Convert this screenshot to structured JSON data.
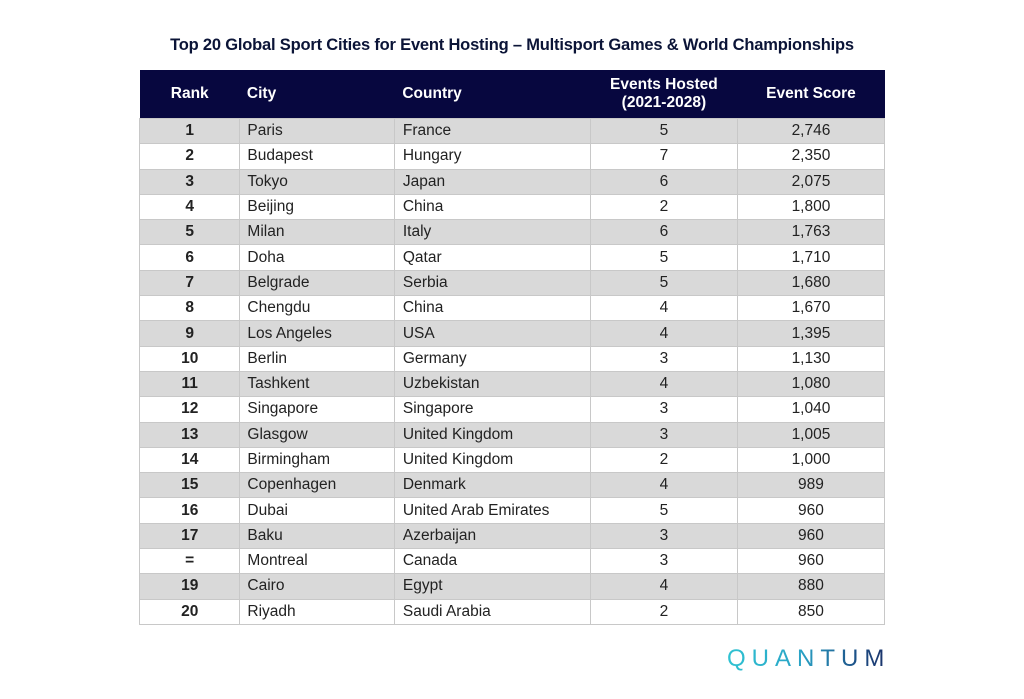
{
  "title": "Top 20 Global Sport Cities for Event Hosting – Multisport Games & World Championships",
  "header": {
    "rank": "Rank",
    "city": "City",
    "country": "Country",
    "events_line1": "Events Hosted",
    "events_line2": "(2021-2028)",
    "score": "Event Score"
  },
  "rows": [
    {
      "rank": "1",
      "city": "Paris",
      "country": "France",
      "events": "5",
      "score": "2,746"
    },
    {
      "rank": "2",
      "city": "Budapest",
      "country": "Hungary",
      "events": "7",
      "score": "2,350"
    },
    {
      "rank": "3",
      "city": "Tokyo",
      "country": "Japan",
      "events": "6",
      "score": "2,075"
    },
    {
      "rank": "4",
      "city": "Beijing",
      "country": "China",
      "events": "2",
      "score": "1,800"
    },
    {
      "rank": "5",
      "city": "Milan",
      "country": "Italy",
      "events": "6",
      "score": "1,763"
    },
    {
      "rank": "6",
      "city": "Doha",
      "country": "Qatar",
      "events": "5",
      "score": "1,710"
    },
    {
      "rank": "7",
      "city": "Belgrade",
      "country": "Serbia",
      "events": "5",
      "score": "1,680"
    },
    {
      "rank": "8",
      "city": "Chengdu",
      "country": "China",
      "events": "4",
      "score": "1,670"
    },
    {
      "rank": "9",
      "city": "Los Angeles",
      "country": "USA",
      "events": "4",
      "score": "1,395"
    },
    {
      "rank": "10",
      "city": "Berlin",
      "country": "Germany",
      "events": "3",
      "score": "1,130"
    },
    {
      "rank": "11",
      "city": "Tashkent",
      "country": "Uzbekistan",
      "events": "4",
      "score": "1,080"
    },
    {
      "rank": "12",
      "city": "Singapore",
      "country": "Singapore",
      "events": "3",
      "score": "1,040"
    },
    {
      "rank": "13",
      "city": "Glasgow",
      "country": "United Kingdom",
      "events": "3",
      "score": "1,005"
    },
    {
      "rank": "14",
      "city": "Birmingham",
      "country": "United Kingdom",
      "events": "2",
      "score": "1,000"
    },
    {
      "rank": "15",
      "city": "Copenhagen",
      "country": "Denmark",
      "events": "4",
      "score": "989"
    },
    {
      "rank": "16",
      "city": "Dubai",
      "country": "United Arab Emirates",
      "events": "5",
      "score": "960"
    },
    {
      "rank": "17",
      "city": "Baku",
      "country": "Azerbaijan",
      "events": "3",
      "score": "960"
    },
    {
      "rank": "=",
      "city": "Montreal",
      "country": "Canada",
      "events": "3",
      "score": "960"
    },
    {
      "rank": "19",
      "city": "Cairo",
      "country": "Egypt",
      "events": "4",
      "score": "880"
    },
    {
      "rank": "20",
      "city": "Riyadh",
      "country": "Saudi Arabia",
      "events": "2",
      "score": "850"
    }
  ],
  "logo": "QUANTUM",
  "colors": {
    "header_bg": "#07073f",
    "title_color": "#0b1437",
    "stripe": "#d9d9d9"
  }
}
